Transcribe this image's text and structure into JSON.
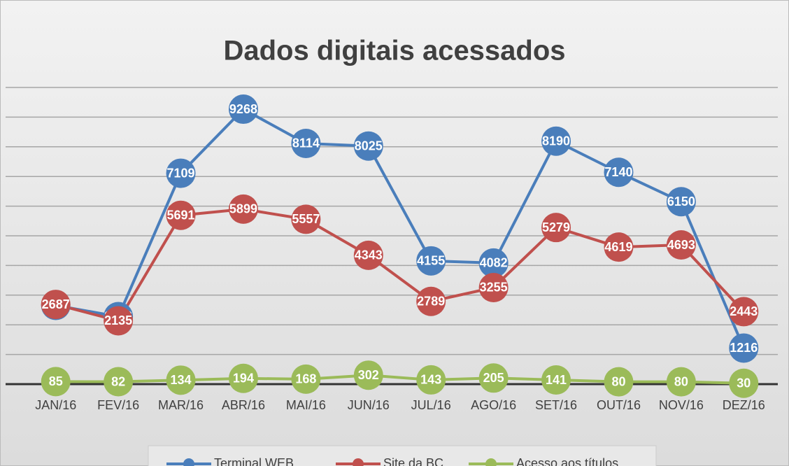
{
  "chart_data": {
    "type": "line",
    "title": "Dados digitais acessados",
    "categories": [
      "JAN/16",
      "FEV/16",
      "MAR/16",
      "ABR/16",
      "MAI/16",
      "JUN/16",
      "JUL/16",
      "AGO/16",
      "SET/16",
      "OUT/16",
      "NOV/16",
      "DEZ/16"
    ],
    "series": [
      {
        "name": "Terminal WEB",
        "color": "#4a7ebb",
        "values": [
          2653,
          2276,
          7109,
          9268,
          8114,
          8025,
          4155,
          4082,
          8190,
          7140,
          6150,
          1216
        ]
      },
      {
        "name": "Site da BC",
        "color": "#c0504d",
        "values": [
          2687,
          2135,
          5691,
          5899,
          5557,
          4343,
          2789,
          3255,
          5279,
          4619,
          4693,
          2443
        ]
      },
      {
        "name": "Acesso aos títulos",
        "color": "#9bbb59",
        "values": [
          85,
          82,
          134,
          194,
          168,
          302,
          143,
          205,
          141,
          80,
          80,
          30
        ]
      }
    ],
    "ylim": [
      0,
      10000
    ],
    "yticks": [
      0,
      1000,
      2000,
      3000,
      4000,
      5000,
      6000,
      7000,
      8000,
      9000,
      10000
    ],
    "grid": true,
    "legend": "bottom"
  }
}
